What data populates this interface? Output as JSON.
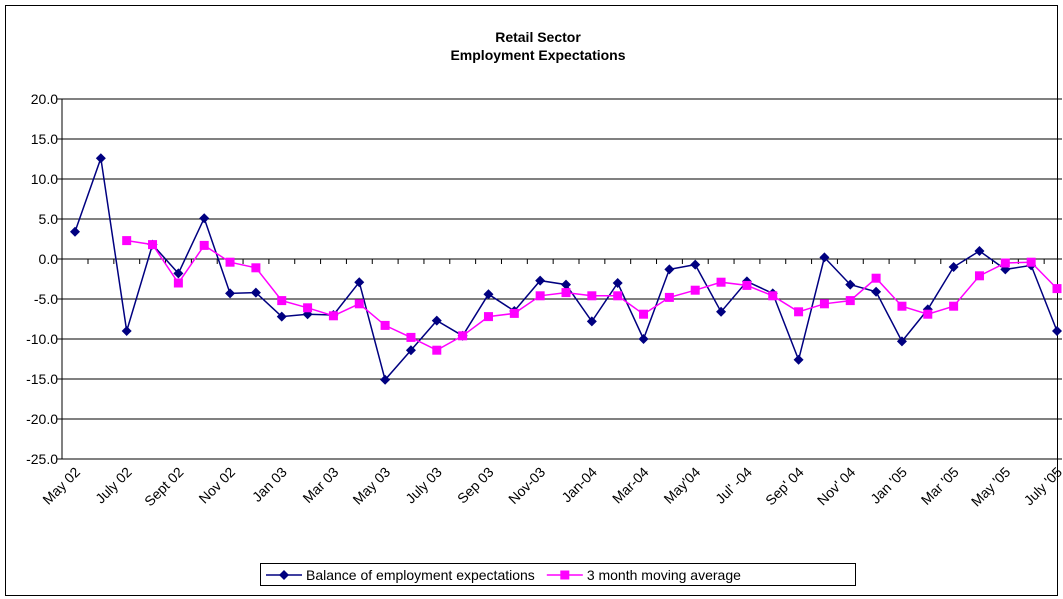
{
  "chart_data": {
    "type": "line",
    "title": "Retail Sector",
    "subtitle": "Employment Expectations",
    "categories": [
      "May 02",
      null,
      "July 02",
      null,
      "Sept 02",
      null,
      "Nov 02",
      null,
      "Jan 03",
      null,
      "Mar 03",
      null,
      "May 03",
      null,
      "July 03",
      null,
      "Sep 03",
      null,
      "Nov-03",
      null,
      "Jan-04",
      null,
      "Mar-04",
      null,
      "May'04",
      null,
      "Jul' -04",
      null,
      "Sep' 04",
      null,
      "Nov' 04",
      null,
      "Jan '05",
      null,
      "Mar '05",
      null,
      "May '05",
      null,
      "July '05"
    ],
    "series": [
      {
        "name": "Balance of employment expectations",
        "color": "#000080",
        "marker": "diamond",
        "values": [
          3.4,
          12.6,
          -9,
          1.8,
          -1.8,
          5.1,
          -4.3,
          -4.2,
          -7.2,
          -6.9,
          -7,
          -2.9,
          -15.1,
          -11.4,
          -7.7,
          -9.6,
          -4.4,
          -6.5,
          -2.7,
          -3.2,
          -7.8,
          -3.0,
          -10,
          -1.3,
          -0.7,
          -6.6,
          -2.8,
          -4.3,
          -12.6,
          0.2,
          -3.2,
          -4.1,
          -10.3,
          -6.3,
          -1.0,
          1.0,
          -1.3,
          -0.8,
          -9
        ]
      },
      {
        "name": "3 month moving average",
        "color": "#ff00ff",
        "marker": "square",
        "values": [
          null,
          null,
          2.3,
          1.8,
          -3.0,
          1.7,
          -0.4,
          -1.1,
          -5.2,
          -6.1,
          -7.1,
          -5.6,
          -8.3,
          -9.8,
          -11.4,
          -9.6,
          -7.2,
          -6.8,
          -4.6,
          -4.2,
          -4.6,
          -4.6,
          -6.9,
          -4.8,
          -3.9,
          -2.9,
          -3.3,
          -4.6,
          -6.6,
          -5.6,
          -5.2,
          -2.4,
          -5.9,
          -6.9,
          -5.9,
          -2.1,
          -0.5,
          -0.4,
          -3.7
        ]
      }
    ],
    "ylim": [
      -25,
      20
    ],
    "yticks": [
      {
        "value": -25,
        "label": "-25.0"
      },
      {
        "value": -20,
        "label": "-20.0"
      },
      {
        "value": -15,
        "label": "-15.0"
      },
      {
        "value": -10,
        "label": "-10.0"
      },
      {
        "value": -5,
        "label": "-5.0"
      },
      {
        "value": 0,
        "label": "0.0"
      },
      {
        "value": 5,
        "label": "5.0"
      },
      {
        "value": 10,
        "label": "10.0"
      },
      {
        "value": 15,
        "label": "15.0"
      },
      {
        "value": 20,
        "label": "20.0"
      }
    ],
    "grid": true,
    "legend": "bottom"
  }
}
